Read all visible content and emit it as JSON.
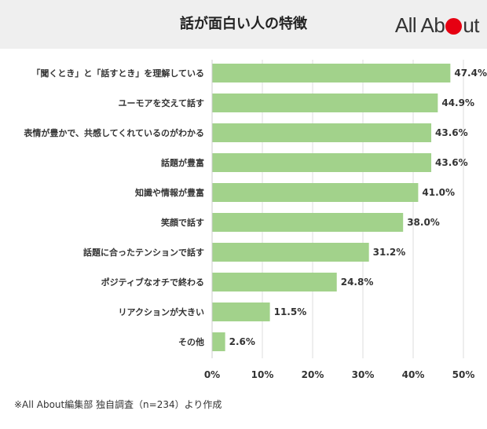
{
  "header": {
    "title": "話が面白い人の特徴",
    "logo_text_pre": "All Ab",
    "logo_text_post": "ut",
    "logo_dot_color": "#e60012"
  },
  "chart_data": {
    "type": "bar",
    "orientation": "horizontal",
    "categories": [
      "「聞くとき」と「話すとき」を理解している",
      "ユーモアを交えて話す",
      "表情が豊かで、共感してくれているのがわかる",
      "話題が豊富",
      "知識や情報が豊富",
      "笑顔で話す",
      "話題に合ったテンションで話す",
      "ポジティブなオチで終わる",
      "リアクションが大きい",
      "その他"
    ],
    "values": [
      47.4,
      44.9,
      43.6,
      43.6,
      41.0,
      38.0,
      31.2,
      24.8,
      11.5,
      2.6
    ],
    "value_labels": [
      "47.4%",
      "44.9%",
      "43.6%",
      "43.6%",
      "41.0%",
      "38.0%",
      "31.2%",
      "24.8%",
      "11.5%",
      "2.6%"
    ],
    "xlim": [
      0,
      50
    ],
    "x_ticks": [
      "0%",
      "10%",
      "20%",
      "30%",
      "40%",
      "50%"
    ],
    "bar_color": "#a2d28b",
    "grid": true,
    "title": "",
    "xlabel": "",
    "ylabel": ""
  },
  "footer": {
    "source": "※All About編集部 独自調査（n=234）より作成"
  }
}
